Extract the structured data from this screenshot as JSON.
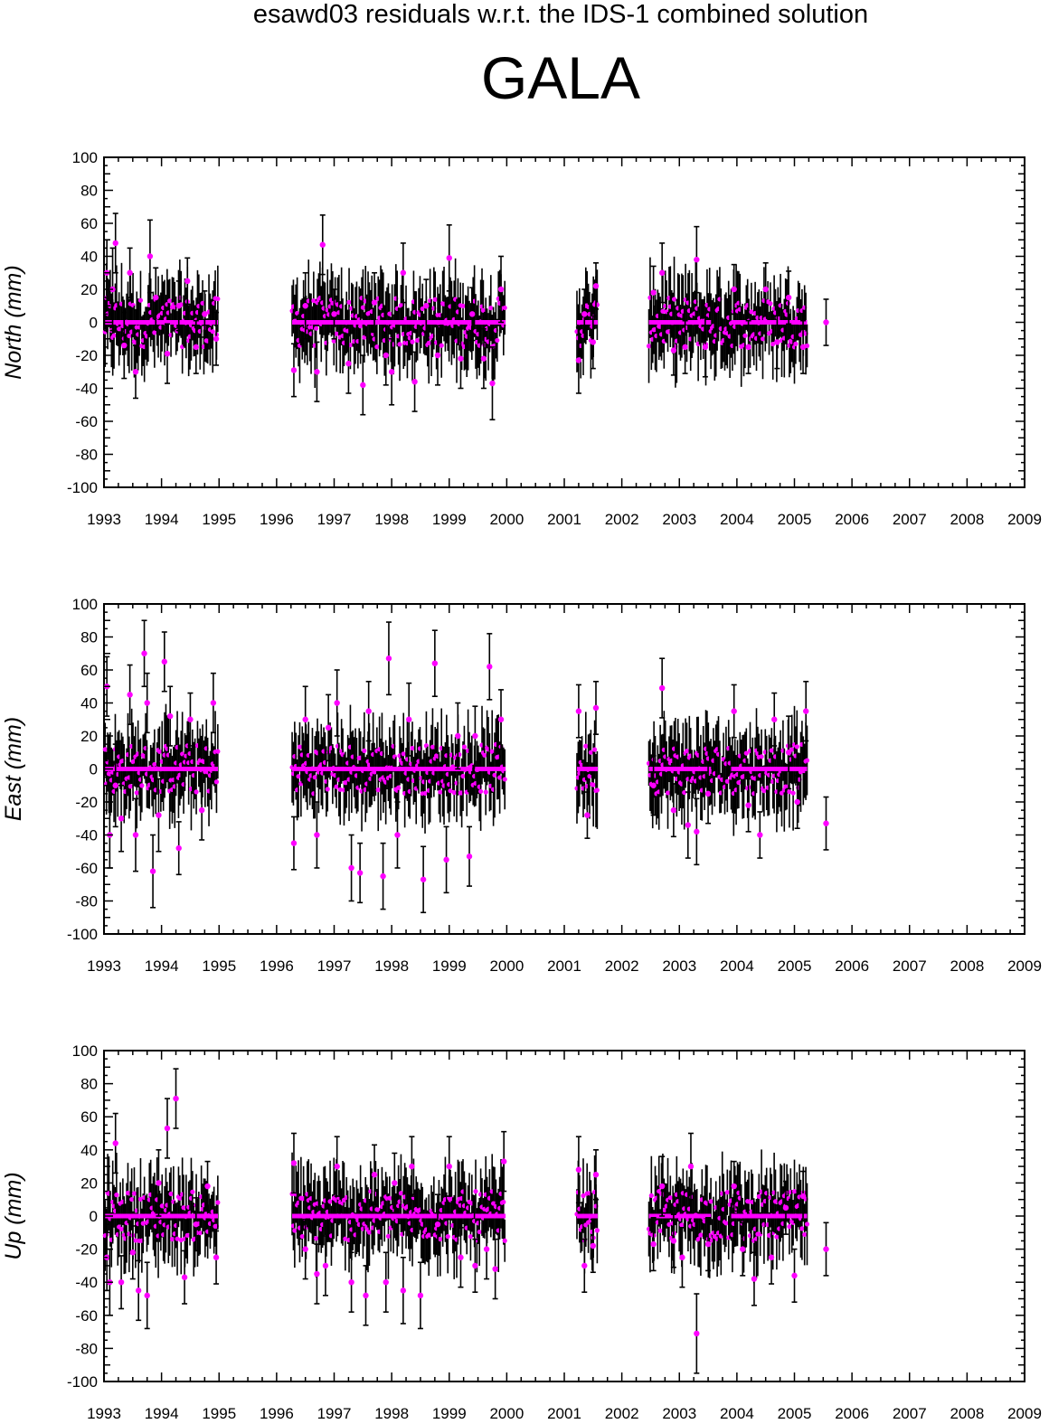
{
  "header": {
    "title": "esawd03 residuals w.r.t. the IDS-1 combined solution",
    "station": "GALA"
  },
  "colors": {
    "marker": "#ff00ff",
    "errorbar": "#000000",
    "frame": "#000000"
  },
  "chart_data": [
    {
      "type": "scatter",
      "title": "",
      "xlabel": "",
      "ylabel": "North (mm)",
      "xlim": [
        1993,
        2009
      ],
      "ylim": [
        -100,
        100
      ],
      "xticks": [
        "1993",
        "1994",
        "1995",
        "1996",
        "1997",
        "1998",
        "1999",
        "2000",
        "2001",
        "2002",
        "2003",
        "2004",
        "2005",
        "2006",
        "2007",
        "2008",
        "2009"
      ],
      "yticks": [
        "100",
        "80",
        "60",
        "40",
        "20",
        "0",
        "-20",
        "-40",
        "-60",
        "-80",
        "-100"
      ],
      "grid": false,
      "data_gaps": [
        [
          1995.0,
          1996.25
        ],
        [
          2000.0,
          2001.2
        ],
        [
          2001.6,
          2002.45
        ],
        [
          2005.25,
          2005.55
        ]
      ],
      "series": [
        {
          "x": [
            1993.05,
            1993.15,
            1993.2,
            1993.35,
            1993.45,
            1993.55,
            1993.8,
            1993.9,
            1994.1,
            1994.3,
            1994.45,
            1994.6,
            1994.75,
            1994.95,
            1996.3,
            1996.5,
            1996.7,
            1996.8,
            1997.0,
            1997.25,
            1997.5,
            1997.7,
            1997.9,
            1998.0,
            1998.2,
            1998.4,
            1998.6,
            1998.8,
            1999.0,
            1999.2,
            1999.4,
            1999.6,
            1999.75,
            1999.9,
            2001.25,
            2001.35,
            2001.5,
            2001.55,
            2002.55,
            2002.7,
            2002.9,
            2003.1,
            2003.3,
            2003.45,
            2003.95,
            2004.2,
            2004.5,
            2004.7,
            2004.9,
            2005.15,
            2005.55
          ],
          "y": [
            30,
            20,
            48,
            -14,
            30,
            -30,
            40,
            15,
            -19,
            10,
            25,
            -15,
            5,
            -10,
            -29,
            10,
            -30,
            47,
            5,
            -25,
            -38,
            12,
            -20,
            -30,
            30,
            -36,
            10,
            -20,
            39,
            -22,
            5,
            -22,
            -37,
            20,
            -23,
            5,
            -12,
            22,
            18,
            30,
            -17,
            -15,
            38,
            -15,
            20,
            -15,
            20,
            -12,
            15,
            -15,
            0
          ],
          "err": [
            20,
            25,
            18,
            20,
            15,
            16,
            22,
            18,
            18,
            15,
            14,
            16,
            14,
            16,
            16,
            20,
            18,
            18,
            15,
            18,
            18,
            18,
            18,
            20,
            18,
            18,
            16,
            18,
            20,
            18,
            16,
            18,
            22,
            20,
            20,
            15,
            16,
            14,
            16,
            18,
            15,
            16,
            20,
            18,
            15,
            16,
            16,
            16,
            16,
            16,
            14
          ]
        }
      ]
    },
    {
      "type": "scatter",
      "title": "",
      "xlabel": "",
      "ylabel": "East (mm)",
      "xlim": [
        1993,
        2009
      ],
      "ylim": [
        -100,
        100
      ],
      "xticks": [
        "1993",
        "1994",
        "1995",
        "1996",
        "1997",
        "1998",
        "1999",
        "2000",
        "2001",
        "2002",
        "2003",
        "2004",
        "2005",
        "2006",
        "2007",
        "2008",
        "2009"
      ],
      "yticks": [
        "100",
        "80",
        "60",
        "40",
        "20",
        "0",
        "-20",
        "-40",
        "-60",
        "-80",
        "-100"
      ],
      "grid": false,
      "data_gaps": [
        [
          1995.0,
          1996.25
        ],
        [
          2000.0,
          2001.2
        ],
        [
          2001.6,
          2002.45
        ],
        [
          2005.25,
          2005.55
        ]
      ],
      "series": [
        {
          "x": [
            1993.05,
            1993.1,
            1993.2,
            1993.3,
            1993.45,
            1993.55,
            1993.7,
            1993.75,
            1993.85,
            1993.95,
            1994.05,
            1994.15,
            1994.3,
            1994.5,
            1994.7,
            1994.9,
            1996.3,
            1996.5,
            1996.7,
            1996.9,
            1997.05,
            1997.3,
            1997.45,
            1997.6,
            1997.85,
            1997.95,
            1998.1,
            1998.3,
            1998.55,
            1998.75,
            1998.95,
            1999.15,
            1999.35,
            1999.45,
            1999.7,
            1999.9,
            2001.25,
            2001.4,
            2001.55,
            2002.55,
            2002.7,
            2002.9,
            2003.15,
            2003.3,
            2003.5,
            2003.95,
            2004.2,
            2004.4,
            2004.65,
            2004.9,
            2005.05,
            2005.2,
            2005.55
          ],
          "y": [
            50,
            -40,
            -10,
            -30,
            45,
            -40,
            70,
            40,
            -62,
            -28,
            65,
            32,
            -48,
            30,
            -25,
            40,
            -45,
            30,
            -40,
            25,
            40,
            -60,
            -63,
            35,
            -65,
            67,
            -40,
            30,
            -67,
            64,
            -55,
            20,
            -53,
            20,
            62,
            30,
            35,
            -28,
            37,
            -10,
            49,
            -25,
            -34,
            -38,
            -15,
            35,
            -22,
            -40,
            30,
            10,
            -20,
            35,
            -33
          ],
          "err": [
            18,
            20,
            25,
            20,
            18,
            22,
            20,
            18,
            22,
            22,
            18,
            18,
            16,
            16,
            18,
            18,
            16,
            20,
            20,
            20,
            20,
            20,
            18,
            18,
            20,
            22,
            20,
            22,
            20,
            20,
            20,
            20,
            18,
            18,
            20,
            18,
            16,
            14,
            16,
            18,
            18,
            16,
            20,
            20,
            18,
            16,
            16,
            14,
            16,
            22,
            16,
            18,
            16
          ]
        }
      ]
    },
    {
      "type": "scatter",
      "title": "",
      "xlabel": "",
      "ylabel": "Up (mm)",
      "xlim": [
        1993,
        2009
      ],
      "ylim": [
        -100,
        100
      ],
      "xticks": [
        "1993",
        "1994",
        "1995",
        "1996",
        "1997",
        "1998",
        "1999",
        "2000",
        "2001",
        "2002",
        "2003",
        "2004",
        "2005",
        "2006",
        "2007",
        "2008",
        "2009"
      ],
      "yticks": [
        "100",
        "80",
        "60",
        "40",
        "20",
        "0",
        "-20",
        "-40",
        "-60",
        "-80",
        "-100"
      ],
      "grid": false,
      "data_gaps": [
        [
          1995.0,
          1996.25
        ],
        [
          2000.0,
          2001.2
        ],
        [
          2001.6,
          2002.45
        ],
        [
          2005.25,
          2005.55
        ]
      ],
      "series": [
        {
          "x": [
            1993.05,
            1993.1,
            1993.2,
            1993.3,
            1993.5,
            1993.6,
            1993.75,
            1993.95,
            1994.1,
            1994.25,
            1994.4,
            1994.6,
            1994.8,
            1994.95,
            1996.3,
            1996.5,
            1996.7,
            1996.85,
            1997.05,
            1997.3,
            1997.55,
            1997.7,
            1997.9,
            1998.05,
            1998.2,
            1998.35,
            1998.5,
            1998.8,
            1999.0,
            1999.2,
            1999.45,
            1999.65,
            1999.8,
            1999.95,
            2001.25,
            2001.35,
            2001.5,
            2001.55,
            2002.55,
            2002.7,
            2002.9,
            2003.05,
            2003.2,
            2003.3,
            2003.5,
            2003.95,
            2004.1,
            2004.3,
            2004.6,
            2004.85,
            2005.0,
            2005.15,
            2005.55
          ],
          "y": [
            -25,
            -40,
            44,
            -40,
            -22,
            -45,
            -48,
            20,
            53,
            71,
            -37,
            -5,
            18,
            -25,
            32,
            -20,
            -35,
            -30,
            30,
            -40,
            -48,
            25,
            -40,
            20,
            -45,
            30,
            -48,
            -5,
            30,
            -25,
            -30,
            -20,
            -32,
            33,
            28,
            -30,
            -18,
            25,
            -17,
            18,
            -15,
            -25,
            30,
            -71,
            -17,
            18,
            -20,
            -38,
            -25,
            5,
            -36,
            12,
            -20
          ],
          "err": [
            20,
            20,
            18,
            16,
            16,
            18,
            20,
            20,
            18,
            18,
            16,
            16,
            15,
            16,
            18,
            18,
            18,
            18,
            18,
            18,
            18,
            18,
            18,
            18,
            20,
            18,
            20,
            18,
            18,
            18,
            16,
            18,
            18,
            18,
            20,
            16,
            16,
            15,
            16,
            18,
            16,
            18,
            20,
            24,
            16,
            15,
            16,
            16,
            16,
            16,
            16,
            15,
            16
          ]
        }
      ]
    }
  ]
}
